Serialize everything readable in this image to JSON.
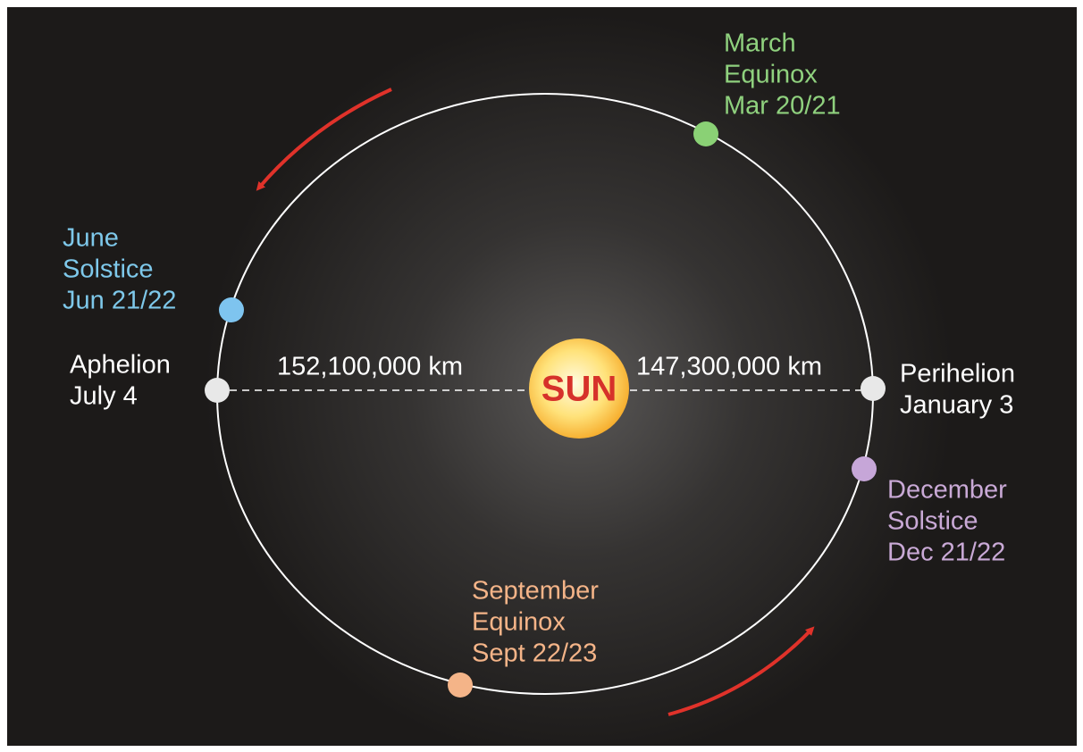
{
  "sun": {
    "label": "SUN"
  },
  "distances": {
    "aphelion": "152,100,000 km",
    "perihelion": "147,300,000 km"
  },
  "events": {
    "march": [
      "March",
      "Equinox",
      "Mar 20/21"
    ],
    "june": [
      "June",
      "Solstice",
      "Jun 21/22"
    ],
    "aphelion": [
      "Aphelion",
      "July 4"
    ],
    "perihelion": [
      "Perihelion",
      "January 3"
    ],
    "december": [
      "December",
      "Solstice",
      "Dec 21/22"
    ],
    "september": [
      "September",
      "Equinox",
      "Sept 22/23"
    ]
  }
}
